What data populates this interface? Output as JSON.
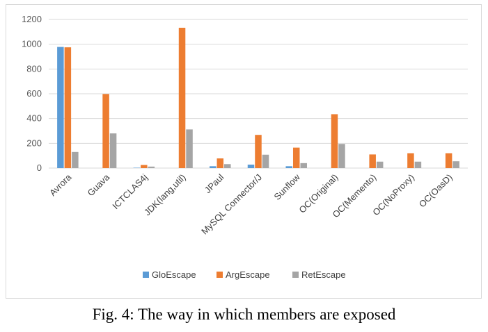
{
  "chart_data": {
    "type": "bar",
    "categories": [
      "Avrora",
      "Guava",
      "ICTCLAS4j",
      "JDK(lang,util)",
      "JPaul",
      "MySQL Connector/J",
      "Sunflow",
      "OC(Original)",
      "OC(Memento)",
      "OC(NoProxy)",
      "OC(OasD)"
    ],
    "series": [
      {
        "name": "GloEscape",
        "color": "#5b9bd5",
        "values": [
          978,
          0,
          3,
          0,
          15,
          28,
          15,
          0,
          0,
          0,
          0
        ]
      },
      {
        "name": "ArgEscape",
        "color": "#ed7d31",
        "values": [
          975,
          598,
          25,
          1133,
          78,
          268,
          165,
          435,
          110,
          120,
          120
        ]
      },
      {
        "name": "RetEscape",
        "color": "#a5a5a5",
        "values": [
          130,
          280,
          12,
          312,
          32,
          108,
          40,
          195,
          52,
          52,
          55
        ]
      }
    ],
    "yticks": [
      "0",
      "200",
      "400",
      "600",
      "800",
      "1000",
      "1200"
    ],
    "ylim": [
      0,
      1200
    ],
    "grid": true,
    "legend_position": "bottom"
  },
  "caption": "Fig. 4: The way in which members are exposed"
}
